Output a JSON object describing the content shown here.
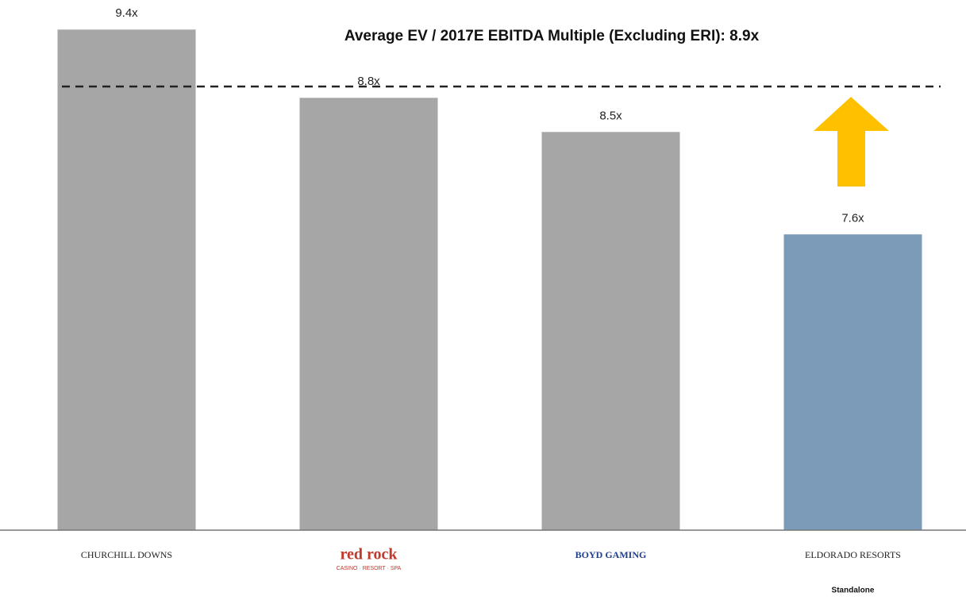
{
  "chart_data": {
    "type": "bar",
    "title": "Average EV / 2017E EBITDA Multiple (Excluding ERI): 8.9x",
    "categories": [
      "CHURCHILL DOWNS",
      "red rock",
      "BOYD GAMING",
      "ELDORADO RESORTS"
    ],
    "category_notes": [
      null,
      "CASINO · RESORT · SPA",
      null,
      "Standalone"
    ],
    "values": [
      9.4,
      8.8,
      8.5,
      7.6
    ],
    "value_labels": [
      "9.4x",
      "8.8x",
      "8.5x",
      "7.6x"
    ],
    "colors": [
      "#a6a6a6",
      "#a6a6a6",
      "#a6a6a6",
      "#7b9bb9"
    ],
    "reference_line": 8.9,
    "ylim": [
      5,
      9.66
    ]
  }
}
